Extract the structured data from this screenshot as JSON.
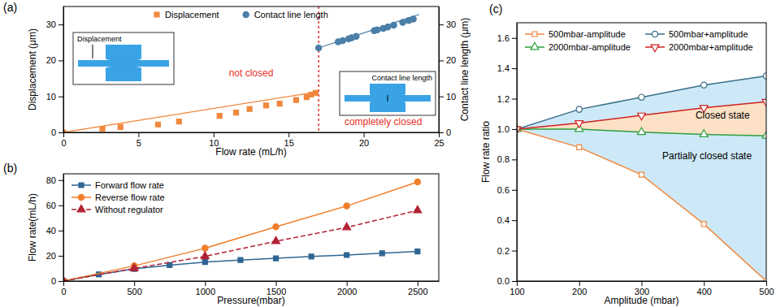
{
  "chart_data": [
    {
      "type": "scatter",
      "title": "(a)",
      "xlabel": "Flow rate (mL/h)",
      "ylabel": "Displacement (μm)",
      "y2label": "Contact line length (μm)",
      "xlim": [
        0,
        25
      ],
      "xticks": [
        0,
        5,
        10,
        15,
        20,
        25
      ],
      "ylim": [
        0,
        35
      ],
      "yticks": [
        0,
        10,
        20,
        30
      ],
      "y2lim": [
        0,
        35
      ],
      "y2ticks": [
        0,
        10,
        20,
        30
      ],
      "legend": "top",
      "series": [
        {
          "name": "Displacement",
          "color": "#f0883e",
          "marker": "square",
          "line_style": "none",
          "x": [
            0,
            2.6,
            3.8,
            6.3,
            7.7,
            10.4,
            11.5,
            12.4,
            13.5,
            14.4,
            15.5,
            16.2,
            16.5,
            16.8
          ],
          "values": [
            0,
            1.0,
            1.5,
            2.2,
            3.0,
            4.6,
            5.5,
            6.5,
            7.5,
            8.0,
            9.0,
            9.8,
            10.5,
            11.0
          ],
          "fit": {
            "x": [
              0,
              17
            ],
            "values": [
              0,
              11.3
            ]
          }
        },
        {
          "name": "Contact line length",
          "color": "#4a7fa8",
          "marker": "circle",
          "line_style": "none",
          "axis": "y2",
          "x": [
            17.0,
            18.3,
            18.6,
            19.0,
            19.2,
            19.5,
            20.7,
            20.9,
            21.3,
            21.6,
            22.0,
            22.6,
            23.0,
            23.3
          ],
          "values": [
            23.5,
            25.2,
            25.5,
            26.0,
            26.3,
            26.7,
            28.3,
            28.5,
            28.9,
            29.3,
            29.8,
            30.6,
            31.1,
            31.5
          ],
          "fit": {
            "x": [
              16.8,
              23.7
            ],
            "values": [
              23.2,
              32.8
            ]
          }
        }
      ],
      "vline": {
        "x": 17,
        "color": "#e8302a"
      },
      "annotations": [
        {
          "text": "not closed",
          "x": 12.5,
          "y": 15.5,
          "color": "#e8302a"
        },
        {
          "text": "completely closed",
          "x": 21.3,
          "y": 2,
          "color": "#e8302a"
        }
      ],
      "insets": [
        {
          "text": "Displacement"
        },
        {
          "text": "Contact line length"
        }
      ]
    },
    {
      "type": "line",
      "title": "(b)",
      "xlabel": "Pressure(mbar)",
      "ylabel": "Flow rate(mL/h)",
      "xlim": [
        0,
        2650
      ],
      "xticks": [
        0,
        500,
        1000,
        1500,
        2000,
        2500
      ],
      "ylim": [
        0,
        85
      ],
      "yticks": [
        0,
        20,
        40,
        60,
        80
      ],
      "legend": "upper left",
      "series": [
        {
          "name": "Forward flow rate",
          "color": "#2f6694",
          "marker": "square",
          "line_style": "solid",
          "x": [
            0,
            250,
            500,
            750,
            1000,
            1250,
            1500,
            1750,
            2000,
            2250,
            2500
          ],
          "values": [
            0,
            5.2,
            9.6,
            12.6,
            15.0,
            16.6,
            18.0,
            19.4,
            20.6,
            22.0,
            23.4
          ]
        },
        {
          "name": "Reverse flow rate",
          "color": "#f07f2c",
          "marker": "circle",
          "line_style": "solid",
          "x": [
            0,
            500,
            1000,
            1500,
            2000,
            2500
          ],
          "values": [
            0,
            12,
            26,
            43,
            59.5,
            78.5
          ]
        },
        {
          "name": "Without regulator",
          "color": "#b22234",
          "marker": "triangle",
          "line_style": "dashed",
          "x": [
            0,
            500,
            1000,
            1500,
            2000,
            2500
          ],
          "values": [
            0,
            10,
            19.5,
            31.5,
            42.5,
            56
          ]
        }
      ]
    },
    {
      "type": "line",
      "title": "(c)",
      "xlabel": "Amplitude (mbar)",
      "ylabel": "Flow rate ratio",
      "xlim": [
        100,
        500
      ],
      "xticks": [
        100,
        200,
        300,
        400,
        500
      ],
      "ylim": [
        0,
        1.7
      ],
      "yticks": [
        {
          "value": 0,
          "label": "0.0"
        },
        {
          "value": 0.2,
          "label": "0.2"
        },
        {
          "value": 0.4,
          "label": "0.4"
        },
        {
          "value": 0.6,
          "label": "0.6"
        },
        {
          "value": 0.8,
          "label": "0.8"
        },
        {
          "value": 1.0,
          "label": "1.0"
        },
        {
          "value": 1.2,
          "label": "1.2"
        },
        {
          "value": 1.4,
          "label": "1.4"
        },
        {
          "value": 1.6,
          "label": "1.6"
        }
      ],
      "legend": "top",
      "series": [
        {
          "name": "500mbar-amplitude",
          "color": "#f0883e",
          "marker": "open-square",
          "line_style": "solid",
          "x": [
            100,
            200,
            300,
            400,
            500
          ],
          "values": [
            1.0,
            0.88,
            0.7,
            0.375,
            0.0
          ]
        },
        {
          "name": "500mbar+amplitude",
          "color": "#3a6e8a",
          "marker": "open-circle",
          "line_style": "solid",
          "x": [
            100,
            200,
            300,
            400,
            500
          ],
          "values": [
            1.0,
            1.13,
            1.21,
            1.29,
            1.35
          ]
        },
        {
          "name": "2000mbar-amplitude",
          "color": "#2e9e3e",
          "marker": "open-triangle",
          "line_style": "solid",
          "x": [
            100,
            200,
            300,
            400,
            500
          ],
          "values": [
            1.0,
            1.0,
            0.98,
            0.965,
            0.955
          ]
        },
        {
          "name": "2000mbar+amplitude",
          "color": "#d02020",
          "marker": "open-triangle-down",
          "line_style": "solid",
          "x": [
            100,
            200,
            300,
            400,
            500
          ],
          "values": [
            1.0,
            1.04,
            1.09,
            1.14,
            1.18
          ]
        }
      ],
      "areas": [
        {
          "lower": "500mbar-amplitude",
          "upper": "500mbar+amplitude",
          "color": "#cde9f7"
        },
        {
          "lower": "2000mbar-amplitude",
          "upper": "2000mbar+amplitude",
          "color": "#fde1c6"
        }
      ],
      "annotations": [
        {
          "text": "Closed state",
          "x": 430,
          "y": 1.07,
          "color": "#000000"
        },
        {
          "text": "Partially closed state",
          "x": 405,
          "y": 0.8,
          "color": "#000000"
        }
      ]
    }
  ]
}
